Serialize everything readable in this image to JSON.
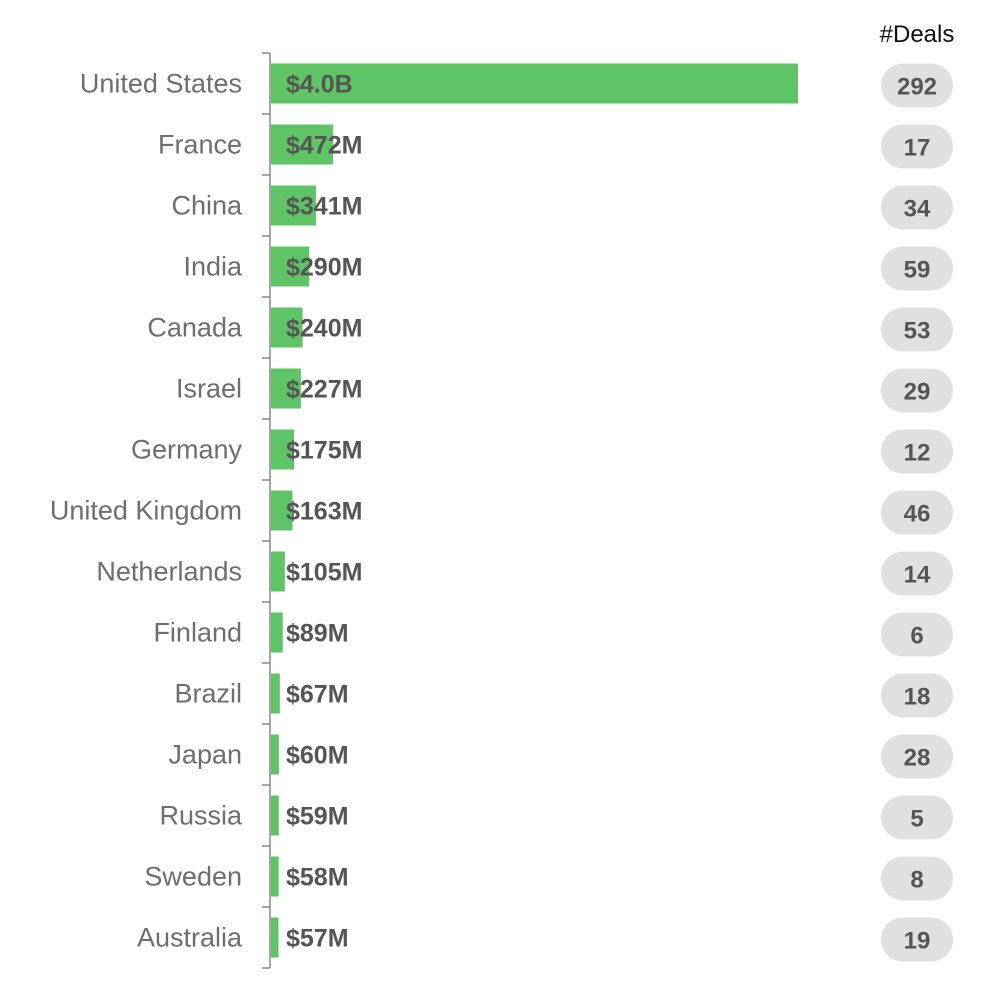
{
  "chart_data": {
    "type": "bar",
    "orientation": "horizontal",
    "categories": [
      "United States",
      "France",
      "China",
      "India",
      "Canada",
      "Israel",
      "Germany",
      "United Kingdom",
      "Netherlands",
      "Finland",
      "Brazil",
      "Japan",
      "Russia",
      "Sweden",
      "Australia"
    ],
    "values": [
      4000,
      472,
      341,
      290,
      240,
      227,
      175,
      163,
      105,
      89,
      67,
      60,
      59,
      58,
      57
    ],
    "value_labels": [
      "$4.0B",
      "$472M",
      "$341M",
      "$290M",
      "$240M",
      "$227M",
      "$175M",
      "$163M",
      "$105M",
      "$89M",
      "$67M",
      "$60M",
      "$59M",
      "$58M",
      "$57M"
    ],
    "value_unit": "$M",
    "deals_header": "#Deals",
    "deals": [
      292,
      17,
      34,
      59,
      53,
      29,
      12,
      46,
      14,
      6,
      18,
      28,
      5,
      8,
      19
    ],
    "xlim": [
      0,
      4000
    ],
    "grid": false,
    "colors": {
      "bar": "#5ec466",
      "pill": "#e0e0e0",
      "axis": "#888888"
    }
  }
}
